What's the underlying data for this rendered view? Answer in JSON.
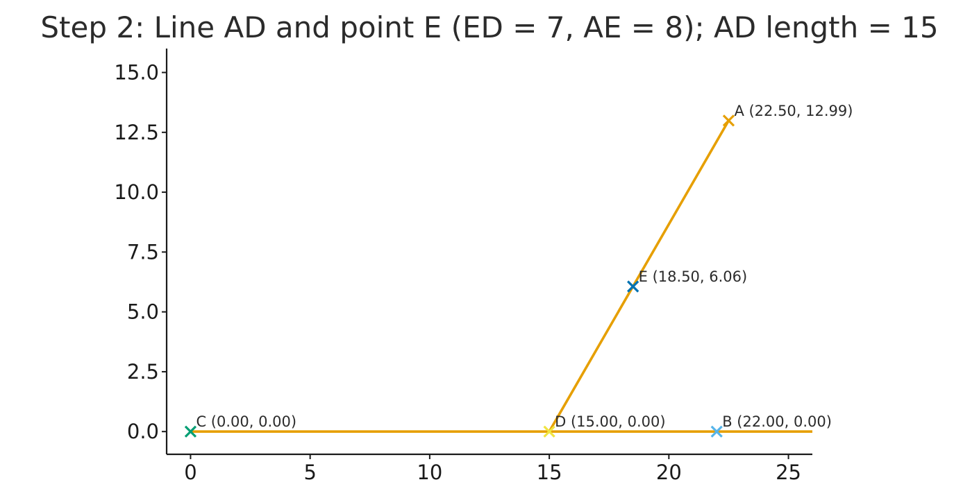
{
  "chart_data": {
    "type": "line",
    "title": "Step 2: Line AD and point E (ED = 7, AE = 8); AD length = 15",
    "xlabel": "",
    "ylabel": "",
    "xlim": [
      -1,
      26
    ],
    "ylim": [
      -0.95,
      16
    ],
    "x_ticks": [
      0,
      5,
      10,
      15,
      20,
      25
    ],
    "x_tick_labels": [
      "0",
      "5",
      "10",
      "15",
      "20",
      "25"
    ],
    "y_ticks": [
      0,
      2.5,
      5,
      7.5,
      10,
      12.5,
      15
    ],
    "y_tick_labels": [
      "0.0",
      "2.5",
      "5.0",
      "7.5",
      "10.0",
      "12.5",
      "15.0"
    ],
    "grid": false,
    "series": [
      {
        "color": "#E69F00",
        "x": [
          0,
          26
        ],
        "y": [
          0,
          0
        ]
      },
      {
        "color": "#E69F00",
        "x": [
          15,
          22.5
        ],
        "y": [
          0,
          12.99
        ]
      }
    ],
    "points": [
      {
        "name": "A",
        "x": 22.5,
        "y": 12.99,
        "label": "A (22.50, 12.99)",
        "color": "#E69F00"
      },
      {
        "name": "E",
        "x": 18.5,
        "y": 6.06,
        "label": "E (18.50, 6.06)",
        "color": "#0072B2"
      },
      {
        "name": "C",
        "x": 0,
        "y": 0,
        "label": "C (0.00, 0.00)",
        "color": "#009E73"
      },
      {
        "name": "D",
        "x": 15,
        "y": 0,
        "label": "D (15.00, 0.00)",
        "color": "#F0E442"
      },
      {
        "name": "B",
        "x": 22,
        "y": 0,
        "label": "B (22.00, 0.00)",
        "color": "#56B4E9"
      }
    ]
  }
}
